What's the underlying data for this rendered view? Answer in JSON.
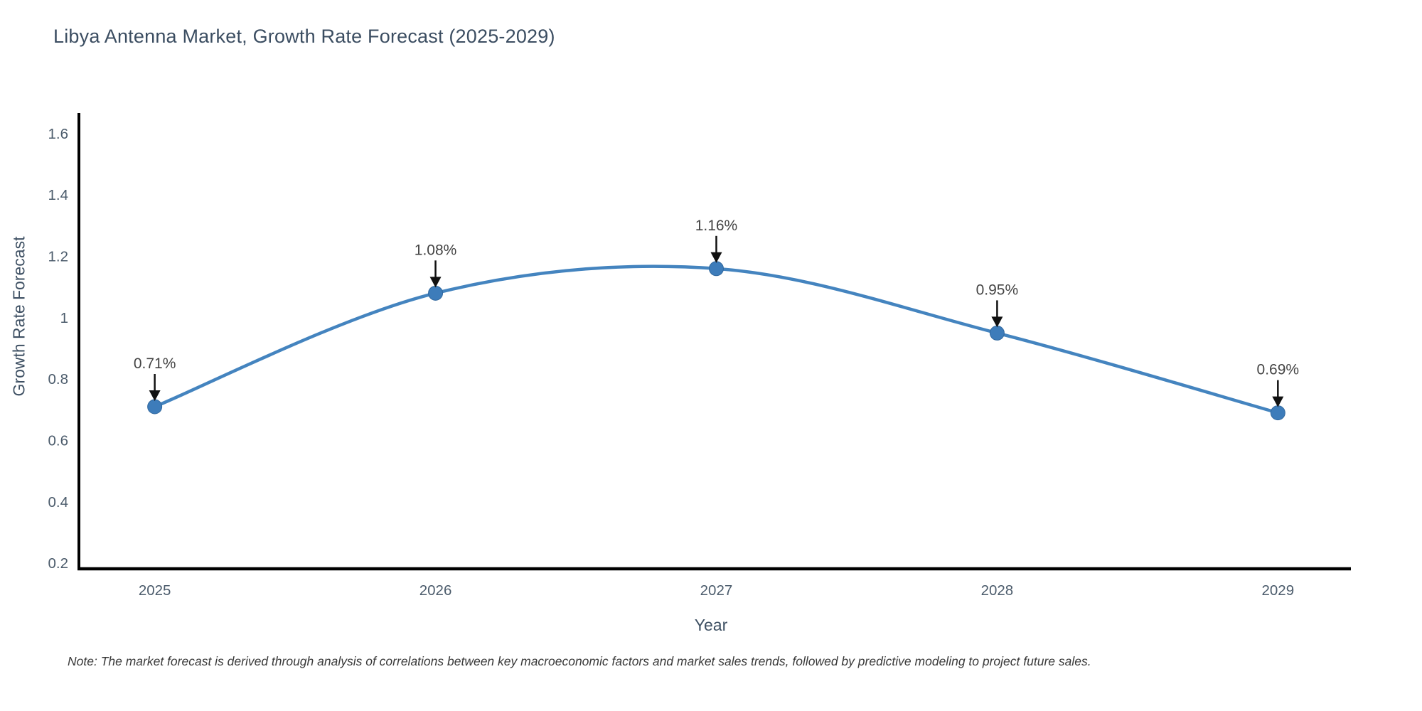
{
  "page": {
    "note": "Note: The market forecast is derived through analysis of correlations between key macroeconomic factors and market sales trends, followed by predictive modeling to project future sales."
  },
  "chart_data": {
    "type": "line",
    "title": "Libya Antenna Market, Growth Rate Forecast (2025-2029)",
    "xlabel": "Year",
    "ylabel": "Growth Rate Forecast",
    "x": [
      2025,
      2026,
      2027,
      2028,
      2029
    ],
    "y": [
      0.71,
      1.08,
      1.16,
      0.95,
      0.69
    ],
    "series": [
      {
        "name": "Growth Rate Forecast",
        "values": [
          0.71,
          1.08,
          1.16,
          0.95,
          0.69
        ]
      }
    ],
    "point_labels": [
      "0.71%",
      "1.08%",
      "1.16%",
      "0.95%",
      "0.69%"
    ],
    "line_shape": "spline",
    "marker": "circle",
    "grid": false,
    "legend_position": "none",
    "xlim": [
      2024.73,
      2029.26
    ],
    "ylim": [
      0.177,
      1.667
    ],
    "xticks": [
      2025,
      2026,
      2027,
      2028,
      2029
    ],
    "xtick_labels": [
      "2025",
      "2026",
      "2027",
      "2028",
      "2029"
    ],
    "yticks": [
      0.2,
      0.4,
      0.6,
      0.8,
      1,
      1.2,
      1.4,
      1.6
    ],
    "ytick_labels": [
      "0.2",
      "0.4",
      "0.6",
      "0.8",
      "1",
      "1.2",
      "1.4",
      "1.6"
    ],
    "colors": {
      "line": "#4484bf",
      "marker_fill": "#3d7cba",
      "marker_edge": "#31689e",
      "axis_line": "#000000",
      "tick_label": "#4c5c6c",
      "annotation_text": "#444444",
      "annotation_arrow": "#111111",
      "title": "#3b4d61",
      "background": "#ffffff"
    }
  }
}
